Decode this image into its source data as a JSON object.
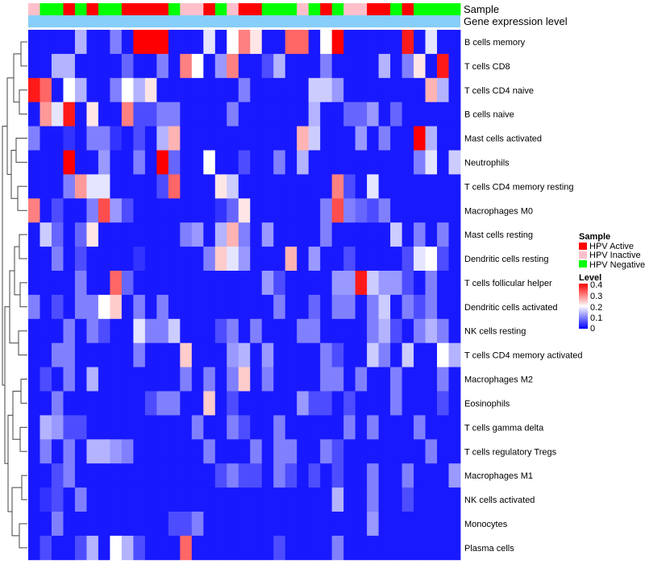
{
  "chart_data": {
    "type": "heatmap",
    "annotation_labels": {
      "sample": "Sample",
      "gene_expression": "Gene expression level"
    },
    "rows": [
      "B cells memory",
      "T cells CD8",
      "T cells CD4 naive",
      "B cells naive",
      "Mast cells activated",
      "Neutrophils",
      "T cells CD4 memory resting",
      "Macrophages M0",
      "Mast cells resting",
      "Dendritic cells resting",
      "T cells follicular helper",
      "Dendritic cells activated",
      "NK cells resting",
      "T cells CD4 memory activated",
      "Macrophages M2",
      "Eosinophils",
      "T cells gamma delta",
      "T cells regulatory  Tregs",
      "Macrophages M1",
      "NK cells activated",
      "Monocytes",
      "Plasma cells"
    ],
    "sample_groups": [
      "HPV Inactive",
      "HPV Negative",
      "HPV Negative",
      "HPV Active",
      "HPV Negative",
      "HPV Active",
      "HPV Negative",
      "HPV Negative",
      "HPV Active",
      "HPV Active",
      "HPV Active",
      "HPV Active",
      "HPV Negative",
      "HPV Inactive",
      "HPV Inactive",
      "HPV Active",
      "HPV Negative",
      "HPV Inactive",
      "HPV Active",
      "HPV Active",
      "HPV Negative",
      "HPV Negative",
      "HPV Negative",
      "HPV Inactive",
      "HPV Negative",
      "HPV Active",
      "HPV Negative",
      "HPV Inactive",
      "HPV Inactive",
      "HPV Active",
      "HPV Active",
      "HPV Negative",
      "HPV Active",
      "HPV Negative",
      "HPV Negative",
      "HPV Negative",
      "HPV Negative"
    ],
    "values": [
      [
        0.02,
        0.02,
        0.02,
        0.02,
        0.14,
        0.02,
        0.02,
        0.1,
        0.02,
        0.4,
        0.4,
        0.4,
        0.02,
        0.02,
        0.02,
        0.18,
        0.02,
        0.2,
        0.3,
        0.22,
        0.02,
        0.02,
        0.32,
        0.32,
        0.02,
        0.2,
        0.4,
        0.02,
        0.02,
        0.02,
        0.02,
        0.02,
        0.38,
        0.02,
        0.18,
        0.02,
        0.02
      ],
      [
        0.02,
        0.02,
        0.14,
        0.14,
        0.02,
        0.02,
        0.02,
        0.02,
        0.08,
        0.02,
        0.02,
        0.1,
        0.02,
        0.3,
        0.2,
        0.02,
        0.12,
        0.3,
        0.02,
        0.02,
        0.06,
        0.14,
        0.02,
        0.02,
        0.02,
        0.1,
        0.02,
        0.02,
        0.02,
        0.02,
        0.14,
        0.02,
        0.1,
        0.22,
        0.02,
        0.38,
        0.02
      ],
      [
        0.38,
        0.32,
        0.02,
        0.2,
        0.14,
        0.02,
        0.02,
        0.1,
        0.2,
        0.14,
        0.22,
        0.02,
        0.02,
        0.02,
        0.02,
        0.02,
        0.02,
        0.02,
        0.1,
        0.02,
        0.02,
        0.02,
        0.02,
        0.02,
        0.16,
        0.16,
        0.12,
        0.02,
        0.02,
        0.02,
        0.02,
        0.02,
        0.02,
        0.02,
        0.26,
        0.14,
        0.02
      ],
      [
        0.02,
        0.28,
        0.18,
        0.38,
        0.02,
        0.22,
        0.02,
        0.02,
        0.3,
        0.06,
        0.06,
        0.1,
        0.1,
        0.02,
        0.02,
        0.02,
        0.02,
        0.1,
        0.02,
        0.02,
        0.02,
        0.02,
        0.02,
        0.02,
        0.14,
        0.02,
        0.02,
        0.08,
        0.08,
        0.12,
        0.02,
        0.08,
        0.02,
        0.02,
        0.02,
        0.02,
        0.02
      ],
      [
        0.1,
        0.02,
        0.02,
        0.04,
        0.02,
        0.1,
        0.1,
        0.04,
        0.02,
        0.06,
        0.02,
        0.14,
        0.26,
        0.02,
        0.02,
        0.02,
        0.02,
        0.02,
        0.02,
        0.02,
        0.02,
        0.02,
        0.02,
        0.26,
        0.16,
        0.02,
        0.02,
        0.02,
        0.12,
        0.02,
        0.1,
        0.02,
        0.02,
        0.4,
        0.14,
        0.02,
        0.02
      ],
      [
        0.02,
        0.02,
        0.02,
        0.4,
        0.02,
        0.02,
        0.12,
        0.02,
        0.02,
        0.1,
        0.02,
        0.4,
        0.08,
        0.02,
        0.02,
        0.2,
        0.02,
        0.02,
        0.06,
        0.02,
        0.02,
        0.1,
        0.02,
        0.14,
        0.02,
        0.02,
        0.02,
        0.02,
        0.02,
        0.02,
        0.02,
        0.02,
        0.02,
        0.1,
        0.18,
        0.02,
        0.16
      ],
      [
        0.02,
        0.02,
        0.02,
        0.1,
        0.28,
        0.18,
        0.18,
        0.02,
        0.02,
        0.02,
        0.02,
        0.06,
        0.32,
        0.02,
        0.02,
        0.02,
        0.22,
        0.16,
        0.02,
        0.02,
        0.02,
        0.02,
        0.02,
        0.02,
        0.02,
        0.02,
        0.3,
        0.06,
        0.02,
        0.18,
        0.02,
        0.02,
        0.02,
        0.02,
        0.02,
        0.02,
        0.02
      ],
      [
        0.3,
        0.02,
        0.06,
        0.02,
        0.02,
        0.1,
        0.34,
        0.12,
        0.06,
        0.02,
        0.02,
        0.02,
        0.02,
        0.02,
        0.02,
        0.02,
        0.04,
        0.08,
        0.22,
        0.02,
        0.02,
        0.02,
        0.02,
        0.02,
        0.02,
        0.1,
        0.34,
        0.1,
        0.08,
        0.06,
        0.1,
        0.02,
        0.02,
        0.02,
        0.02,
        0.02,
        0.02
      ],
      [
        0.02,
        0.16,
        0.08,
        0.02,
        0.08,
        0.22,
        0.02,
        0.02,
        0.02,
        0.02,
        0.02,
        0.02,
        0.02,
        0.1,
        0.12,
        0.02,
        0.14,
        0.26,
        0.1,
        0.02,
        0.12,
        0.02,
        0.02,
        0.02,
        0.02,
        0.1,
        0.02,
        0.02,
        0.02,
        0.02,
        0.02,
        0.16,
        0.02,
        0.1,
        0.02,
        0.1,
        0.02
      ],
      [
        0.02,
        0.02,
        0.1,
        0.02,
        0.06,
        0.02,
        0.02,
        0.02,
        0.02,
        0.04,
        0.02,
        0.02,
        0.02,
        0.02,
        0.02,
        0.1,
        0.24,
        0.18,
        0.12,
        0.02,
        0.02,
        0.02,
        0.26,
        0.02,
        0.12,
        0.02,
        0.02,
        0.06,
        0.02,
        0.02,
        0.02,
        0.02,
        0.06,
        0.18,
        0.2,
        0.06,
        0.02
      ],
      [
        0.02,
        0.02,
        0.02,
        0.02,
        0.1,
        0.02,
        0.02,
        0.32,
        0.08,
        0.02,
        0.02,
        0.02,
        0.02,
        0.02,
        0.02,
        0.02,
        0.02,
        0.02,
        0.02,
        0.02,
        0.12,
        0.06,
        0.02,
        0.02,
        0.02,
        0.02,
        0.12,
        0.12,
        0.38,
        0.16,
        0.12,
        0.12,
        0.06,
        0.02,
        0.1,
        0.02,
        0.02
      ],
      [
        0.1,
        0.02,
        0.06,
        0.02,
        0.1,
        0.1,
        0.2,
        0.24,
        0.02,
        0.1,
        0.02,
        0.1,
        0.02,
        0.02,
        0.02,
        0.02,
        0.02,
        0.02,
        0.02,
        0.02,
        0.02,
        0.1,
        0.02,
        0.02,
        0.08,
        0.02,
        0.1,
        0.1,
        0.02,
        0.1,
        0.16,
        0.02,
        0.1,
        0.06,
        0.1,
        0.02,
        0.02
      ],
      [
        0.02,
        0.02,
        0.02,
        0.1,
        0.02,
        0.1,
        0.06,
        0.02,
        0.02,
        0.18,
        0.1,
        0.1,
        0.16,
        0.02,
        0.02,
        0.02,
        0.06,
        0.1,
        0.02,
        0.1,
        0.02,
        0.02,
        0.02,
        0.1,
        0.1,
        0.02,
        0.02,
        0.02,
        0.02,
        0.1,
        0.14,
        0.06,
        0.02,
        0.1,
        0.14,
        0.1,
        0.02
      ],
      [
        0.02,
        0.02,
        0.1,
        0.1,
        0.02,
        0.02,
        0.02,
        0.02,
        0.02,
        0.1,
        0.02,
        0.02,
        0.02,
        0.24,
        0.02,
        0.02,
        0.02,
        0.12,
        0.14,
        0.02,
        0.12,
        0.02,
        0.02,
        0.02,
        0.02,
        0.1,
        0.06,
        0.02,
        0.02,
        0.16,
        0.1,
        0.02,
        0.16,
        0.02,
        0.02,
        0.2,
        0.14
      ],
      [
        0.02,
        0.06,
        0.02,
        0.1,
        0.02,
        0.14,
        0.02,
        0.02,
        0.02,
        0.02,
        0.02,
        0.02,
        0.02,
        0.1,
        0.02,
        0.1,
        0.02,
        0.1,
        0.24,
        0.02,
        0.1,
        0.02,
        0.02,
        0.02,
        0.02,
        0.1,
        0.1,
        0.02,
        0.1,
        0.02,
        0.02,
        0.1,
        0.02,
        0.02,
        0.02,
        0.1,
        0.02
      ],
      [
        0.02,
        0.02,
        0.1,
        0.02,
        0.02,
        0.02,
        0.02,
        0.02,
        0.02,
        0.02,
        0.06,
        0.1,
        0.1,
        0.02,
        0.02,
        0.24,
        0.02,
        0.06,
        0.02,
        0.02,
        0.02,
        0.02,
        0.02,
        0.12,
        0.06,
        0.06,
        0.02,
        0.06,
        0.02,
        0.02,
        0.02,
        0.1,
        0.02,
        0.02,
        0.02,
        0.06,
        0.02
      ],
      [
        0.02,
        0.14,
        0.12,
        0.06,
        0.06,
        0.02,
        0.02,
        0.02,
        0.02,
        0.02,
        0.02,
        0.02,
        0.02,
        0.02,
        0.1,
        0.02,
        0.02,
        0.1,
        0.06,
        0.02,
        0.02,
        0.1,
        0.02,
        0.02,
        0.02,
        0.02,
        0.02,
        0.1,
        0.02,
        0.1,
        0.02,
        0.02,
        0.02,
        0.1,
        0.02,
        0.02,
        0.02
      ],
      [
        0.02,
        0.1,
        0.02,
        0.1,
        0.02,
        0.14,
        0.14,
        0.12,
        0.1,
        0.02,
        0.02,
        0.02,
        0.02,
        0.02,
        0.02,
        0.1,
        0.02,
        0.02,
        0.02,
        0.1,
        0.02,
        0.1,
        0.1,
        0.02,
        0.02,
        0.1,
        0.06,
        0.02,
        0.02,
        0.02,
        0.02,
        0.02,
        0.02,
        0.02,
        0.1,
        0.02,
        0.02
      ],
      [
        0.02,
        0.02,
        0.06,
        0.1,
        0.02,
        0.02,
        0.02,
        0.02,
        0.02,
        0.02,
        0.02,
        0.02,
        0.02,
        0.02,
        0.02,
        0.02,
        0.06,
        0.1,
        0.06,
        0.06,
        0.02,
        0.1,
        0.06,
        0.02,
        0.06,
        0.02,
        0.06,
        0.02,
        0.02,
        0.1,
        0.02,
        0.02,
        0.1,
        0.02,
        0.02,
        0.02,
        0.12
      ],
      [
        0.02,
        0.04,
        0.06,
        0.02,
        0.1,
        0.02,
        0.02,
        0.02,
        0.02,
        0.02,
        0.02,
        0.02,
        0.02,
        0.02,
        0.02,
        0.02,
        0.02,
        0.02,
        0.02,
        0.02,
        0.02,
        0.02,
        0.02,
        0.02,
        0.02,
        0.02,
        0.14,
        0.02,
        0.02,
        0.1,
        0.02,
        0.02,
        0.06,
        0.02,
        0.02,
        0.02,
        0.02
      ],
      [
        0.02,
        0.02,
        0.1,
        0.02,
        0.02,
        0.02,
        0.02,
        0.02,
        0.02,
        0.02,
        0.02,
        0.02,
        0.06,
        0.06,
        0.1,
        0.02,
        0.02,
        0.02,
        0.02,
        0.02,
        0.02,
        0.02,
        0.02,
        0.02,
        0.02,
        0.02,
        0.02,
        0.02,
        0.02,
        0.12,
        0.02,
        0.02,
        0.02,
        0.02,
        0.02,
        0.02,
        0.02
      ],
      [
        0.02,
        0.06,
        0.02,
        0.02,
        0.06,
        0.14,
        0.02,
        0.2,
        0.14,
        0.06,
        0.02,
        0.02,
        0.02,
        0.32,
        0.02,
        0.02,
        0.02,
        0.02,
        0.02,
        0.02,
        0.02,
        0.06,
        0.02,
        0.02,
        0.02,
        0.02,
        0.1,
        0.02,
        0.02,
        0.02,
        0.02,
        0.02,
        0.02,
        0.02,
        0.02,
        0.02,
        0.02
      ]
    ],
    "legend": {
      "sample_title": "Sample",
      "sample_items": [
        {
          "label": "HPV Active",
          "color": "#ff0000"
        },
        {
          "label": "HPV Inactive",
          "color": "#ffc0cb"
        },
        {
          "label": "HPV Negative",
          "color": "#00ff00"
        }
      ],
      "level_title": "Level",
      "level_ticks": [
        "0.4",
        "0.3",
        "0.2",
        "0.1",
        "0"
      ],
      "level_range": [
        0,
        0.4
      ]
    },
    "colors": {
      "low": "#0000ff",
      "mid": "#ffffff",
      "high": "#ff0000",
      "gene_bar": "#87cefa"
    }
  }
}
